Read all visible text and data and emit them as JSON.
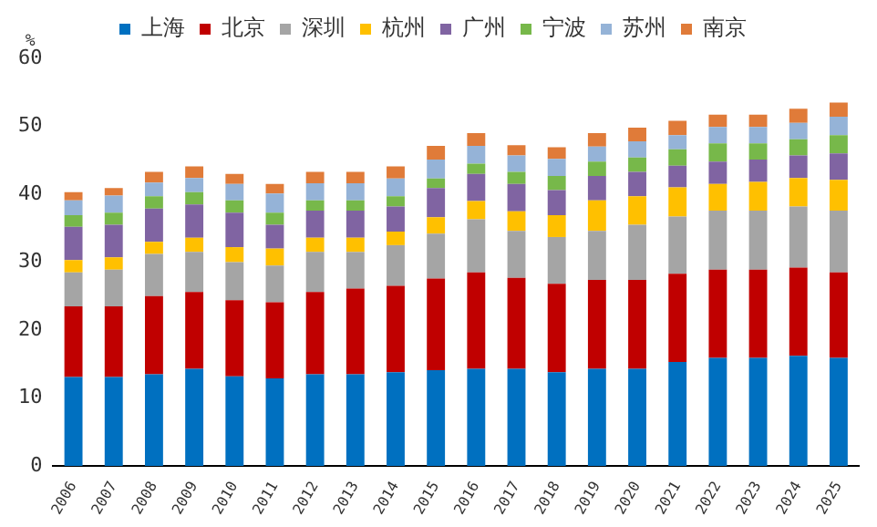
{
  "chart_data": {
    "type": "bar",
    "stacked": true,
    "ylabel": "%",
    "legend": "top",
    "grid": false,
    "categories": [
      "2006",
      "2007",
      "2008",
      "2009",
      "2010",
      "2011",
      "2012",
      "2013",
      "2014",
      "2015",
      "2016",
      "2017",
      "2018",
      "2019",
      "2020",
      "2021",
      "2022",
      "2023",
      "2024",
      "2025"
    ],
    "ylim": [
      0,
      60
    ],
    "yticks": [
      0,
      10,
      20,
      30,
      40,
      50,
      60
    ],
    "series": [
      {
        "name": "上海",
        "color": "#0070c0",
        "values": [
          13.1,
          13.1,
          13.5,
          14.3,
          13.2,
          12.9,
          13.5,
          13.5,
          13.8,
          14.1,
          14.3,
          14.3,
          13.8,
          14.3,
          14.3,
          15.3,
          15.9,
          15.9,
          16.2,
          15.9
        ]
      },
      {
        "name": "北京",
        "color": "#c00000",
        "values": [
          10.4,
          10.4,
          11.5,
          11.3,
          11.2,
          11.2,
          12.1,
          12.6,
          12.7,
          13.5,
          14.2,
          13.4,
          13.0,
          13.1,
          13.1,
          13.0,
          13.0,
          13.0,
          13.0,
          12.6
        ]
      },
      {
        "name": "深圳",
        "color": "#a5a5a5",
        "values": [
          5.0,
          5.4,
          6.2,
          5.9,
          5.6,
          5.4,
          5.9,
          5.4,
          6.0,
          6.6,
          7.8,
          6.9,
          6.9,
          7.2,
          8.1,
          8.4,
          8.7,
          8.7,
          9.0,
          9.1
        ]
      },
      {
        "name": "杭州",
        "color": "#ffc000",
        "values": [
          1.8,
          1.8,
          1.8,
          2.1,
          2.2,
          2.5,
          2.1,
          2.1,
          2.0,
          2.4,
          2.7,
          2.9,
          3.2,
          4.5,
          4.2,
          4.3,
          3.9,
          4.2,
          4.2,
          4.5
        ]
      },
      {
        "name": "广州",
        "color": "#8064a2",
        "values": [
          4.9,
          4.8,
          4.9,
          4.9,
          5.1,
          3.5,
          4.0,
          4.0,
          3.7,
          4.3,
          4.0,
          4.0,
          3.7,
          3.6,
          3.6,
          3.2,
          3.3,
          3.3,
          3.3,
          3.9
        ]
      },
      {
        "name": "宁波",
        "color": "#77b84a",
        "values": [
          1.7,
          1.8,
          1.8,
          1.8,
          1.8,
          1.8,
          1.5,
          1.5,
          1.5,
          1.4,
          1.5,
          1.8,
          2.1,
          2.1,
          2.1,
          2.4,
          2.7,
          2.4,
          2.4,
          2.7
        ]
      },
      {
        "name": "苏州",
        "color": "#95b3d7",
        "values": [
          2.2,
          2.5,
          2.0,
          2.1,
          2.4,
          2.8,
          2.5,
          2.5,
          2.6,
          2.8,
          2.6,
          2.4,
          2.5,
          2.2,
          2.4,
          2.1,
          2.4,
          2.4,
          2.4,
          2.7
        ]
      },
      {
        "name": "南京",
        "color": "#e07b39",
        "values": [
          1.2,
          1.1,
          1.6,
          1.7,
          1.5,
          1.4,
          1.7,
          1.7,
          1.8,
          2.0,
          1.9,
          1.5,
          1.7,
          2.0,
          2.0,
          2.1,
          1.8,
          1.8,
          2.1,
          2.1
        ]
      }
    ]
  }
}
